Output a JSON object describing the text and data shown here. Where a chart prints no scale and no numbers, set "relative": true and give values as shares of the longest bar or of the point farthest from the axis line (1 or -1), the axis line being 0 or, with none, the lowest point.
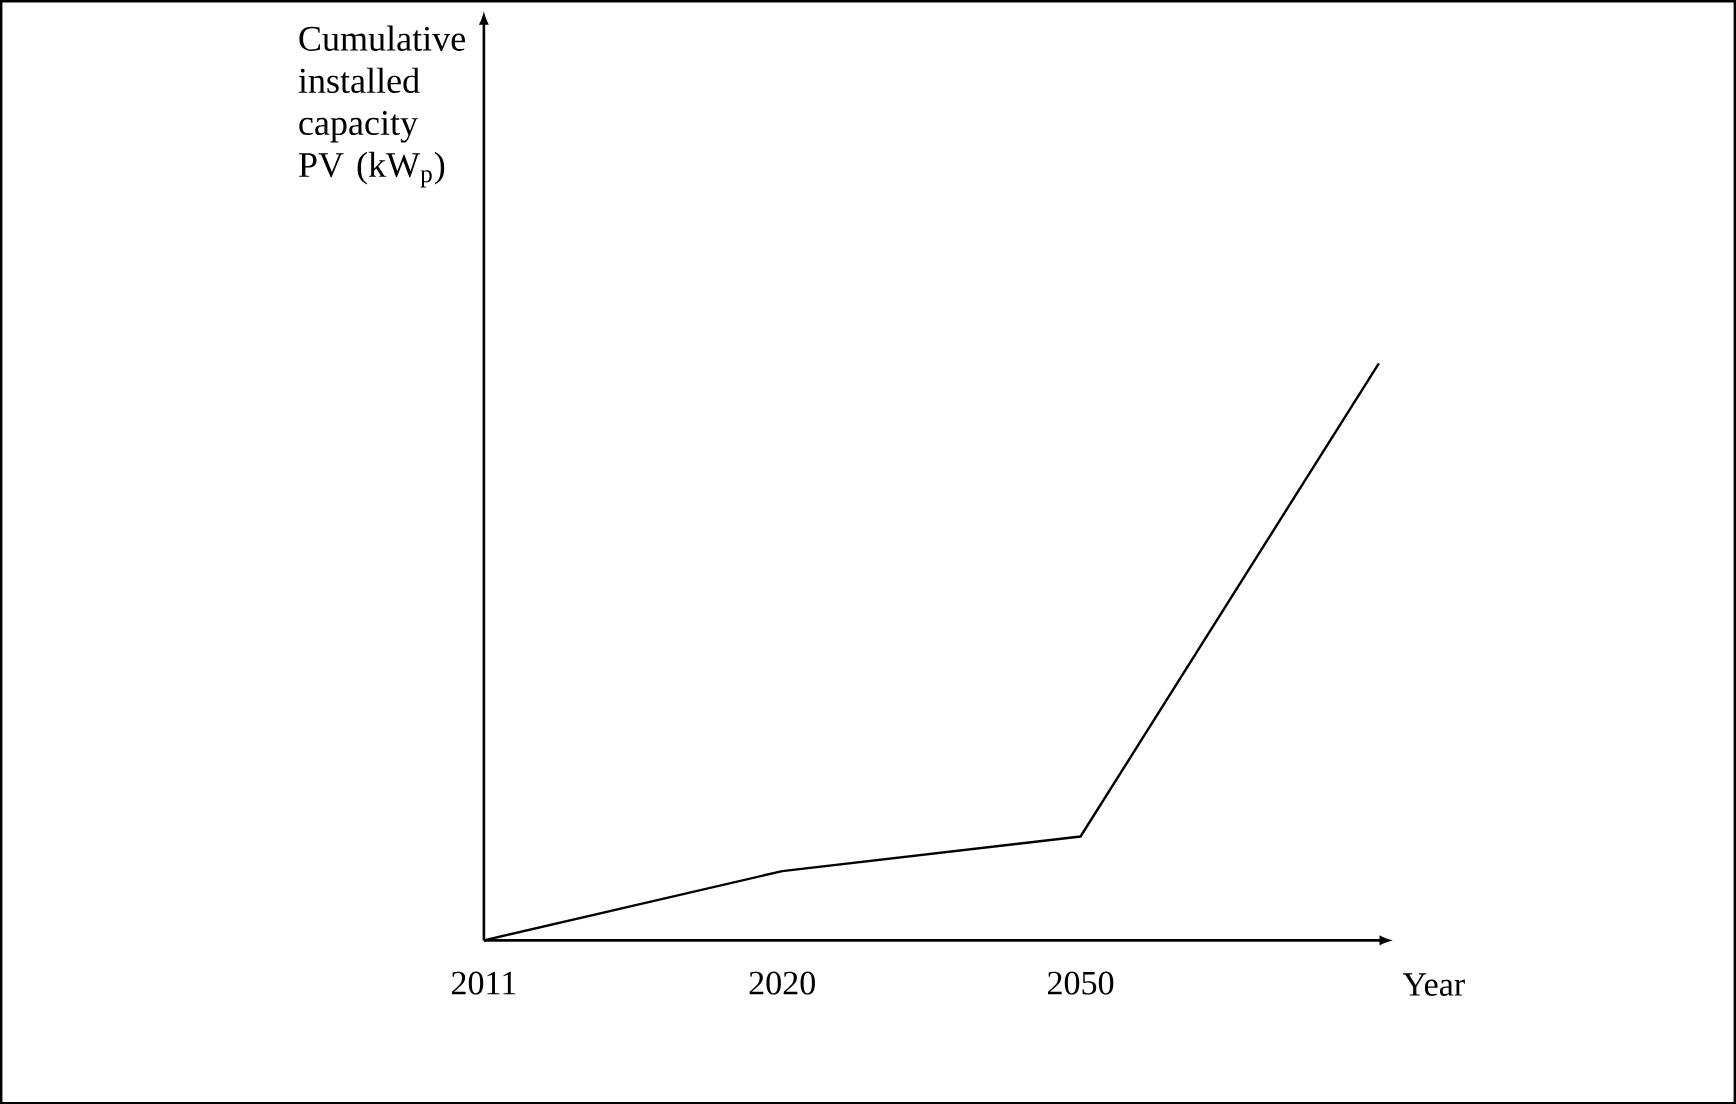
{
  "chart_data": {
    "type": "line",
    "relative": true,
    "xlabel": "Year",
    "ylabel": "Cumulative installed capacity PV (kW$_{p}$)",
    "categories": [
      "2011",
      "2020",
      "2050",
      null
    ],
    "series": [
      {
        "color": "#000000",
        "values": [
          0,
          0.12,
          0.18,
          1
        ]
      }
    ],
    "grid": false,
    "marker": "none",
    "line_style": "solid"
  }
}
